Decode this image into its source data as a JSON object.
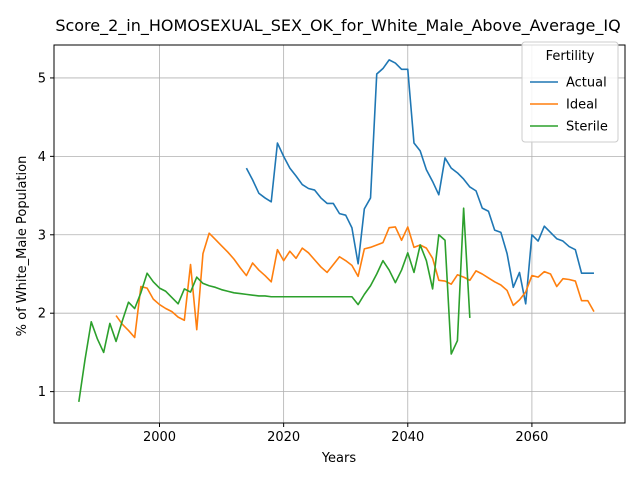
{
  "chart_data": {
    "type": "line",
    "title": "Score_2_in_HOMOSEXUAL_SEX_OK_for_White_Male_Above_Average_IQ",
    "xlabel": "Years",
    "ylabel": "% of White_Male Population",
    "xlim": [
      1983,
      2075
    ],
    "ylim": [
      0.6,
      5.42
    ],
    "xticks": [
      2000,
      2020,
      2040,
      2060
    ],
    "yticks": [
      1,
      2,
      3,
      4,
      5
    ],
    "grid": true,
    "legend": {
      "title": "Fertility",
      "position": "top-right"
    },
    "series": [
      {
        "name": "Actual",
        "color": "#1f77b4",
        "x": [
          2014,
          2015,
          2016,
          2017,
          2018,
          2019,
          2020,
          2021,
          2022,
          2023,
          2024,
          2025,
          2026,
          2027,
          2028,
          2029,
          2030,
          2031,
          2032,
          2033,
          2034,
          2035,
          2036,
          2037,
          2038,
          2039,
          2040,
          2041,
          2042,
          2043,
          2044,
          2045,
          2046,
          2047,
          2048,
          2049,
          2050,
          2051,
          2052,
          2053,
          2054,
          2055,
          2056,
          2057,
          2058,
          2059,
          2060,
          2061,
          2062,
          2063,
          2064,
          2065,
          2066,
          2067,
          2068,
          2069,
          2070
        ],
        "values": [
          3.85,
          3.7,
          3.53,
          3.47,
          3.42,
          4.17,
          4.0,
          3.85,
          3.75,
          3.64,
          3.59,
          3.57,
          3.47,
          3.4,
          3.4,
          3.27,
          3.25,
          3.09,
          2.63,
          3.33,
          3.47,
          5.05,
          5.12,
          5.23,
          5.19,
          5.11,
          5.11,
          4.17,
          4.07,
          3.83,
          3.68,
          3.51,
          3.98,
          3.85,
          3.79,
          3.71,
          3.61,
          3.56,
          3.34,
          3.3,
          3.06,
          3.03,
          2.76,
          2.33,
          2.52,
          2.12,
          3.0,
          2.92,
          3.11,
          3.03,
          2.95,
          2.92,
          2.85,
          2.81,
          2.51,
          2.51,
          2.51
        ]
      },
      {
        "name": "Ideal",
        "color": "#ff7f0e",
        "x": [
          1993,
          1994,
          1995,
          1996,
          1997,
          1998,
          1999,
          2000,
          2001,
          2002,
          2003,
          2004,
          2005,
          2006,
          2007,
          2008,
          2009,
          2010,
          2011,
          2012,
          2013,
          2014,
          2015,
          2016,
          2017,
          2018,
          2019,
          2020,
          2021,
          2022,
          2023,
          2024,
          2025,
          2026,
          2027,
          2028,
          2029,
          2030,
          2031,
          2032,
          2033,
          2034,
          2035,
          2036,
          2037,
          2038,
          2039,
          2040,
          2041,
          2042,
          2043,
          2044,
          2045,
          2046,
          2047,
          2048,
          2049,
          2050,
          2051,
          2052,
          2053,
          2054,
          2055,
          2056,
          2057,
          2058,
          2059,
          2060,
          2061,
          2062,
          2063,
          2064,
          2065,
          2066,
          2067,
          2068,
          2069,
          2070
        ],
        "values": [
          1.97,
          1.86,
          1.78,
          1.69,
          2.34,
          2.32,
          2.18,
          2.11,
          2.06,
          2.02,
          1.95,
          1.91,
          2.62,
          1.79,
          2.76,
          3.02,
          2.94,
          2.86,
          2.78,
          2.69,
          2.58,
          2.48,
          2.64,
          2.55,
          2.48,
          2.4,
          2.81,
          2.67,
          2.79,
          2.7,
          2.83,
          2.77,
          2.68,
          2.59,
          2.52,
          2.62,
          2.72,
          2.67,
          2.61,
          2.47,
          2.82,
          2.84,
          2.87,
          2.9,
          3.09,
          3.1,
          2.93,
          3.1,
          2.84,
          2.87,
          2.83,
          2.7,
          2.42,
          2.41,
          2.37,
          2.49,
          2.46,
          2.42,
          2.54,
          2.5,
          2.45,
          2.4,
          2.36,
          2.29,
          2.1,
          2.17,
          2.27,
          2.48,
          2.46,
          2.53,
          2.5,
          2.34,
          2.44,
          2.43,
          2.41,
          2.16,
          2.16,
          2.02
        ]
      },
      {
        "name": "Sterile",
        "color": "#2ca02c",
        "x": [
          1987,
          1988,
          1989,
          1990,
          1991,
          1992,
          1993,
          1994,
          1995,
          1996,
          1997,
          1998,
          1999,
          2000,
          2001,
          2002,
          2003,
          2004,
          2005,
          2006,
          2007,
          2008,
          2009,
          2010,
          2011,
          2012,
          2013,
          2014,
          2015,
          2016,
          2017,
          2018,
          2019,
          2020,
          2021,
          2022,
          2023,
          2024,
          2025,
          2026,
          2027,
          2028,
          2029,
          2030,
          2031,
          2032,
          2033,
          2034,
          2035,
          2036,
          2037,
          2038,
          2039,
          2040,
          2041,
          2042,
          2043,
          2044,
          2045,
          2046,
          2047,
          2048,
          2049,
          2050
        ],
        "values": [
          0.87,
          1.41,
          1.89,
          1.67,
          1.5,
          1.87,
          1.64,
          1.9,
          2.14,
          2.06,
          2.26,
          2.51,
          2.4,
          2.32,
          2.28,
          2.2,
          2.12,
          2.31,
          2.27,
          2.46,
          2.38,
          2.35,
          2.33,
          2.3,
          2.28,
          2.26,
          2.25,
          2.24,
          2.23,
          2.22,
          2.22,
          2.21,
          2.21,
          2.21,
          2.21,
          2.21,
          2.21,
          2.21,
          2.21,
          2.21,
          2.21,
          2.21,
          2.21,
          2.21,
          2.21,
          2.11,
          2.24,
          2.35,
          2.5,
          2.67,
          2.55,
          2.39,
          2.55,
          2.77,
          2.52,
          2.87,
          2.67,
          2.31,
          3.0,
          2.93,
          1.48,
          1.65,
          3.34,
          1.94
        ]
      }
    ]
  }
}
